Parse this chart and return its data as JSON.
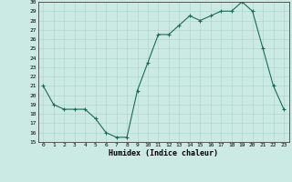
{
  "x": [
    0,
    1,
    2,
    3,
    4,
    5,
    6,
    7,
    8,
    9,
    10,
    11,
    12,
    13,
    14,
    15,
    16,
    17,
    18,
    19,
    20,
    21,
    22,
    23
  ],
  "y": [
    21,
    19,
    18.5,
    18.5,
    18.5,
    17.5,
    16,
    15.5,
    15.5,
    20.5,
    23.5,
    26.5,
    26.5,
    27.5,
    28.5,
    28,
    28.5,
    29,
    29,
    30,
    29,
    25,
    21,
    18.5
  ],
  "line_color": "#1a6b5a",
  "marker": "+",
  "marker_color": "#1a6b5a",
  "bg_color": "#cceae4",
  "grid_color": "#aad4cc",
  "xlabel": "Humidex (Indice chaleur)",
  "xlim": [
    -0.5,
    23.5
  ],
  "ylim": [
    15,
    30
  ],
  "xtick_labels": [
    "0",
    "1",
    "2",
    "3",
    "4",
    "5",
    "6",
    "7",
    "8",
    "9",
    "10",
    "11",
    "12",
    "13",
    "14",
    "15",
    "16",
    "17",
    "18",
    "19",
    "20",
    "21",
    "22",
    "23"
  ],
  "ytick_values": [
    15,
    16,
    17,
    18,
    19,
    20,
    21,
    22,
    23,
    24,
    25,
    26,
    27,
    28,
    29,
    30
  ],
  "figsize": [
    3.2,
    2.0
  ],
  "dpi": 100
}
